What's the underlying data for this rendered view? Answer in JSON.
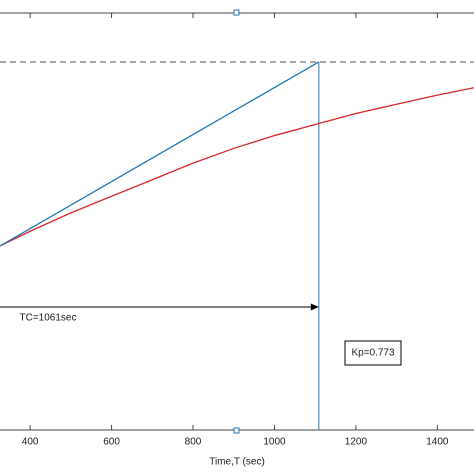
{
  "chart_data": {
    "type": "line",
    "xlabel": "Time,T (sec)",
    "xlim": [
      326,
      1490
    ],
    "ylim": [
      0,
      1.133
    ],
    "xticks": [
      400,
      600,
      800,
      1000,
      1200,
      1400
    ],
    "hline": 1.0,
    "vline": 1109,
    "series": [
      {
        "color": "#d62728",
        "x": [
          326,
          400,
          500,
          600,
          700,
          800,
          900,
          1000,
          1100,
          1200,
          1300,
          1400,
          1490
        ],
        "values": [
          0.5,
          0.54,
          0.59,
          0.635,
          0.68,
          0.725,
          0.765,
          0.8,
          0.83,
          0.86,
          0.885,
          0.91,
          0.93
        ]
      },
      {
        "color": "#1f77b4",
        "x": [
          326,
          1109
        ],
        "values": [
          0.5,
          1.0
        ]
      }
    ],
    "annotations": [
      {
        "text": "TC=1061sec"
      },
      {
        "text": "Kp=0.773"
      }
    ]
  }
}
